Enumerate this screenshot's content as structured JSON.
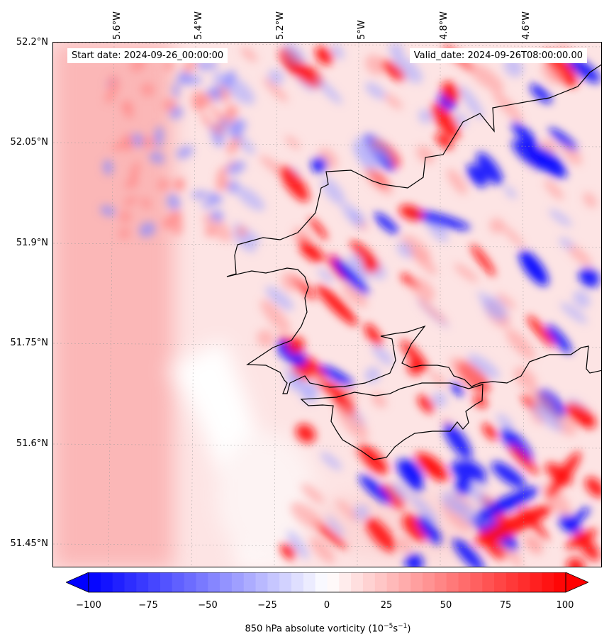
{
  "map": {
    "start_date": "Start date: 2024-09-26_00:00:00",
    "valid_date": "Valid_date: 2024-09-26T08:00:00.00",
    "lat_labels": [
      "52.2°N",
      "52.05°N",
      "51.9°N",
      "51.75°N",
      "51.6°N",
      "51.45°N"
    ],
    "lon_labels": [
      "5.6°W",
      "5.4°W",
      "5.2°W",
      "5°W",
      "4.8°W",
      "4.6°W"
    ],
    "extent": {
      "lon_min": -5.75,
      "lon_max": -4.43,
      "lat_min": 51.415,
      "lat_max": 52.2
    },
    "coastline": "Pembrokeshire and Carmarthenshire coast, south-west Wales",
    "colors": {
      "negative": "#0000ff",
      "neutral": "#ffffff",
      "positive": "#ff0000"
    }
  },
  "colorbar": {
    "ticks": [
      "−100",
      "−75",
      "−50",
      "−25",
      "0",
      "25",
      "50",
      "75",
      "100"
    ],
    "range": [
      -100,
      100
    ],
    "step": 5,
    "extend": "both",
    "label_text": "850 hPa absolute vorticity (10",
    "label_exp1": "−5",
    "label_mid": "s",
    "label_exp2": "−1",
    "label_end": ")"
  }
}
